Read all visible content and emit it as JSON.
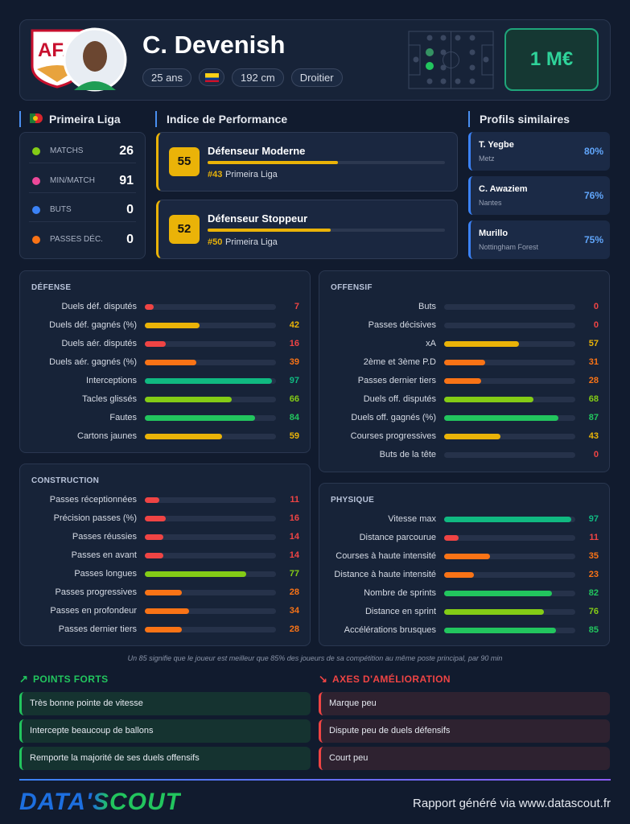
{
  "header": {
    "name": "C. Devenish",
    "tags": [
      "25 ans",
      "192 cm",
      "Droitier"
    ],
    "market_value": "1 M€"
  },
  "league": {
    "title": "Primeira Liga",
    "stats": [
      {
        "label": "MATCHS",
        "value": 26
      },
      {
        "label": "MIN/MATCH",
        "value": 91
      },
      {
        "label": "BUTS",
        "value": 0
      },
      {
        "label": "PASSES DÉC.",
        "value": 0
      }
    ]
  },
  "performance": {
    "title": "Indice de Performance",
    "items": [
      {
        "score": 55,
        "role": "Défenseur Moderne",
        "rank": "#43",
        "league": "Primeira Liga"
      },
      {
        "score": 52,
        "role": "Défenseur Stoppeur",
        "rank": "#50",
        "league": "Primeira Liga"
      }
    ]
  },
  "similar": {
    "title": "Profils similaires",
    "items": [
      {
        "name": "T. Yegbe",
        "club": "Metz",
        "match": "80%"
      },
      {
        "name": "C. Awaziem",
        "club": "Nantes",
        "match": "76%"
      },
      {
        "name": "Murillo",
        "club": "Nottingham Forest",
        "match": "75%"
      }
    ]
  },
  "sections": [
    {
      "title": "DÉFENSE",
      "rows": [
        {
          "label": "Duels déf. disputés",
          "value": 7
        },
        {
          "label": "Duels déf. gagnés (%)",
          "value": 42
        },
        {
          "label": "Duels aér. disputés",
          "value": 16
        },
        {
          "label": "Duels aér. gagnés (%)",
          "value": 39
        },
        {
          "label": "Interceptions",
          "value": 97
        },
        {
          "label": "Tacles glissés",
          "value": 66
        },
        {
          "label": "Fautes",
          "value": 84
        },
        {
          "label": "Cartons jaunes",
          "value": 59
        }
      ]
    },
    {
      "title": "OFFENSIF",
      "rows": [
        {
          "label": "Buts",
          "value": 0
        },
        {
          "label": "Passes décisives",
          "value": 0
        },
        {
          "label": "xA",
          "value": 57
        },
        {
          "label": "2ème et 3ème P.D",
          "value": 31
        },
        {
          "label": "Passes dernier tiers",
          "value": 28
        },
        {
          "label": "Duels off. disputés",
          "value": 68
        },
        {
          "label": "Duels off. gagnés (%)",
          "value": 87
        },
        {
          "label": "Courses progressives",
          "value": 43
        },
        {
          "label": "Buts de la tête",
          "value": 0
        }
      ]
    },
    {
      "title": "CONSTRUCTION",
      "rows": [
        {
          "label": "Passes réceptionnées",
          "value": 11
        },
        {
          "label": "Précision passes (%)",
          "value": 16
        },
        {
          "label": "Passes réussies",
          "value": 14
        },
        {
          "label": "Passes en avant",
          "value": 14
        },
        {
          "label": "Passes longues",
          "value": 77
        },
        {
          "label": "Passes progressives",
          "value": 28
        },
        {
          "label": "Passes en profondeur",
          "value": 34
        },
        {
          "label": "Passes dernier tiers",
          "value": 28
        }
      ]
    },
    {
      "title": "PHYSIQUE",
      "rows": [
        {
          "label": "Vitesse max",
          "value": 97
        },
        {
          "label": "Distance parcourue",
          "value": 11
        },
        {
          "label": "Courses à haute intensité",
          "value": 35
        },
        {
          "label": "Distance à haute intensité",
          "value": 23
        },
        {
          "label": "Nombre de sprints",
          "value": 82
        },
        {
          "label": "Distance en sprint",
          "value": 76
        },
        {
          "label": "Accélérations brusques",
          "value": 85
        }
      ]
    }
  ],
  "footnote": "Un 85 signifie que le joueur est meilleur que 85% des joueurs de sa compétition au même poste principal, par 90 min",
  "strengths": {
    "title": "POINTS FORTS",
    "items": [
      "Très bonne pointe de vitesse",
      "Intercepte beaucoup de ballons",
      "Remporte la majorité de ses duels offensifs"
    ]
  },
  "improvements": {
    "title": "AXES D'AMÉLIORATION",
    "items": [
      "Marque peu",
      "Dispute peu de duels défensifs",
      "Court peu"
    ]
  },
  "footer": {
    "logo": "DATA'SCOUT",
    "text": "Rapport généré via www.datascout.fr"
  }
}
